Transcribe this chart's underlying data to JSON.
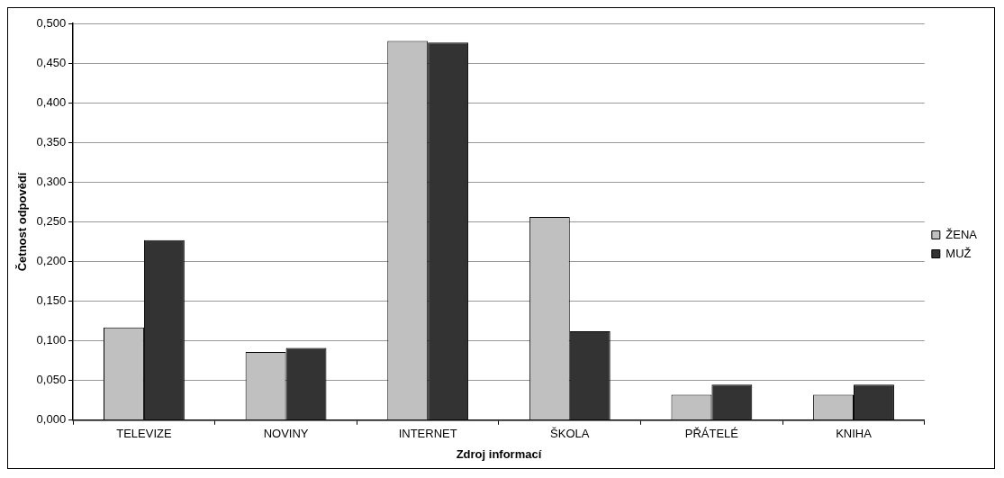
{
  "chart_data": {
    "type": "bar",
    "xlabel": "Zdroj informací",
    "ylabel": "Četnost odpovědí",
    "categories": [
      "TELEVIZE",
      "NOVINY",
      "INTERNET",
      "ŠKOLA",
      "PŘÁTELÉ",
      "KNIHA"
    ],
    "series": [
      {
        "name": "ŽENA",
        "color": "#c0c0c0",
        "values": [
          0.117,
          0.086,
          0.478,
          0.256,
          0.032,
          0.032
        ]
      },
      {
        "name": "MUŽ",
        "color": "#333333",
        "values": [
          0.227,
          0.091,
          0.476,
          0.112,
          0.045,
          0.045
        ]
      }
    ],
    "ylim": [
      0,
      0.5
    ],
    "yticks": [
      {
        "value": 0,
        "label": "0,000"
      },
      {
        "value": 0.05,
        "label": "0,050"
      },
      {
        "value": 0.1,
        "label": "0,100"
      },
      {
        "value": 0.15,
        "label": "0,150"
      },
      {
        "value": 0.2,
        "label": "0,200"
      },
      {
        "value": 0.25,
        "label": "0,250"
      },
      {
        "value": 0.3,
        "label": "0,300"
      },
      {
        "value": 0.35,
        "label": "0,350"
      },
      {
        "value": 0.4,
        "label": "0,400"
      },
      {
        "value": 0.45,
        "label": "0,450"
      },
      {
        "value": 0.5,
        "label": "0,500"
      }
    ],
    "grid": "y",
    "legend": "right"
  }
}
